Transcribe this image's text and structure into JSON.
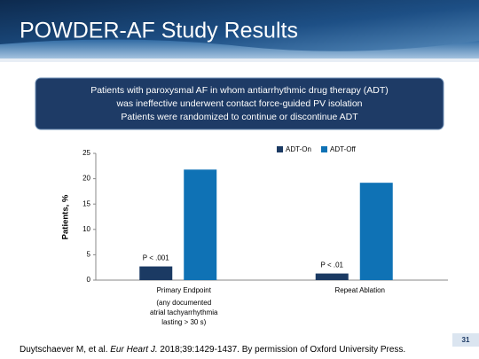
{
  "header": {
    "title": "POWDER-AF Study Results"
  },
  "box": {
    "lines": [
      "Patients with paroxysmal AF in whom antiarrhythmic drug therapy (ADT)",
      "was ineffective  underwent contact force-guided PV isolation",
      "Patients were randomized to continue or discontinue ADT"
    ]
  },
  "chart_data": {
    "type": "bar",
    "ylabel": "Patients, %",
    "categories": [
      "Primary Endpoint",
      "Repeat Ablation"
    ],
    "annotations": [
      "(any documented",
      "atrial tachyarrhythmia",
      "lasting > 30 s)"
    ],
    "p_values": [
      "P < .001",
      "P < .01"
    ],
    "series": [
      {
        "name": "ADT-On",
        "color": "#1b3a63",
        "values": [
          2.7,
          1.3
        ]
      },
      {
        "name": "ADT-Off",
        "color": "#0f72b5",
        "values": [
          21.8,
          19.2
        ]
      }
    ],
    "ylim": [
      0,
      25
    ],
    "yticks": [
      0,
      5,
      10,
      15,
      20,
      25
    ],
    "grid": false,
    "legend": "top"
  },
  "citation": {
    "authors": "Duytschaever M, et al.",
    "journal": "Eur Heart J.",
    "rest": "2018;39:1429-1437. By permission of Oxford University Press."
  },
  "page_number": "31"
}
